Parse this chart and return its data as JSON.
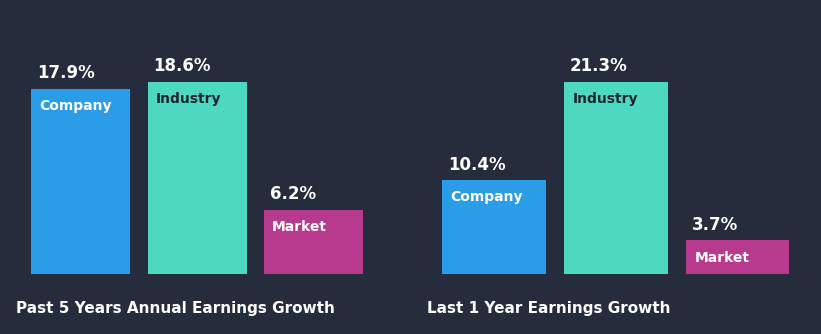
{
  "background_color": "#252d3d",
  "chart1": {
    "title": "Past 5 Years Annual Earnings Growth",
    "categories": [
      "Company",
      "Industry",
      "Market"
    ],
    "values": [
      17.9,
      18.6,
      6.2
    ],
    "colors": [
      "#2b9de8",
      "#4dd9c0",
      "#b83a8e"
    ]
  },
  "chart2": {
    "title": "Last 1 Year Earnings Growth",
    "categories": [
      "Company",
      "Industry",
      "Market"
    ],
    "values": [
      10.4,
      21.3,
      3.7
    ],
    "colors": [
      "#2b9de8",
      "#4dd9c0",
      "#b83a8e"
    ]
  },
  "label_fontsize": 10,
  "title_fontsize": 11,
  "bar_label_fontsize": 12,
  "text_color_white": "#ffffff",
  "text_color_dark": "#1e2530",
  "title_color": "#ffffff",
  "bar_width": 0.85,
  "separator_color": "#6688aa"
}
